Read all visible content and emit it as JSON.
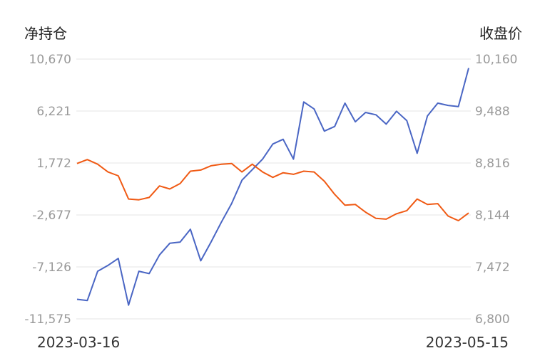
{
  "chart_data": {
    "type": "line",
    "left_axis": {
      "title": "净持仓",
      "ticks": [
        "10,670",
        "6,221",
        "1,772",
        "-2,677",
        "-7,126",
        "-11,575"
      ],
      "range": [
        -11575,
        10670
      ]
    },
    "right_axis": {
      "title": "收盘价",
      "ticks": [
        "10,160",
        "9,488",
        "8,816",
        "8,144",
        "7,472",
        "6,800"
      ],
      "range": [
        6800,
        10160
      ]
    },
    "x_labels": [
      "2023-03-16",
      "2023-05-15"
    ],
    "grid": true,
    "legend": "none",
    "series": [
      {
        "axis": "left",
        "color": "#4a66c4",
        "values": [
          -9900,
          -10000,
          -7500,
          -7000,
          -6400,
          -10400,
          -7500,
          -7700,
          -6100,
          -5100,
          -5000,
          -3900,
          -6600,
          -5000,
          -3300,
          -1700,
          300,
          1200,
          2100,
          3400,
          3800,
          2100,
          7000,
          6400,
          4500,
          4900,
          6900,
          5300,
          6100,
          5900,
          5100,
          6200,
          5400,
          2600,
          5800,
          6900,
          6700,
          6600,
          9900
        ],
        "marker": "none"
      },
      {
        "axis": "right",
        "color": "#f05a14",
        "values": [
          8810,
          8860,
          8800,
          8700,
          8650,
          8350,
          8340,
          8370,
          8520,
          8480,
          8550,
          8710,
          8725,
          8780,
          8800,
          8810,
          8700,
          8800,
          8700,
          8630,
          8690,
          8670,
          8710,
          8700,
          8580,
          8410,
          8270,
          8280,
          8180,
          8100,
          8090,
          8160,
          8200,
          8350,
          8280,
          8290,
          8130,
          8070,
          8170
        ],
        "marker": "none"
      }
    ]
  }
}
